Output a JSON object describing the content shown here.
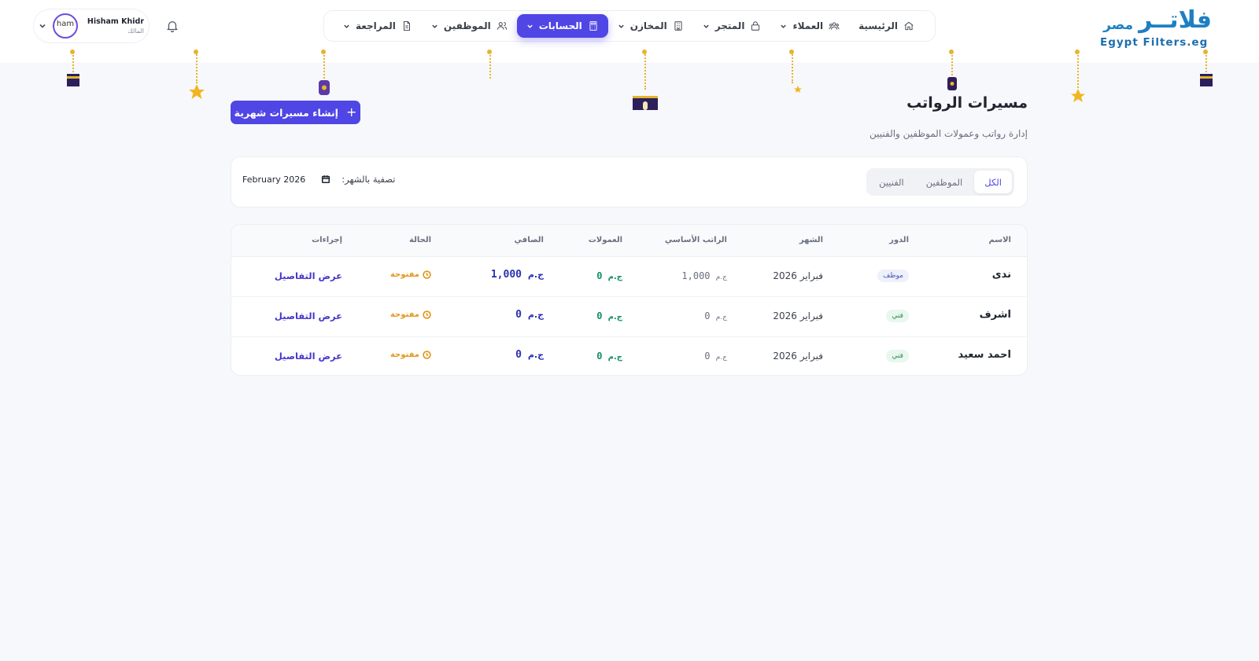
{
  "brand": {
    "name_ar": "فلاتــر",
    "name_ar_small": "مصر",
    "name_en": "Egypt Filters.eg"
  },
  "nav": [
    {
      "label": "الرئيسية",
      "icon": "home-icon",
      "has_menu": false,
      "active": false
    },
    {
      "label": "العملاء",
      "icon": "users-group-icon",
      "has_menu": true,
      "active": false
    },
    {
      "label": "المتجر",
      "icon": "lock-bag-icon",
      "has_menu": true,
      "active": false
    },
    {
      "label": "المخازن",
      "icon": "building-icon",
      "has_menu": true,
      "active": false
    },
    {
      "label": "الحسابات",
      "icon": "calculator-icon",
      "has_menu": true,
      "active": true
    },
    {
      "label": "الموظفين",
      "icon": "staff-icon",
      "has_menu": true,
      "active": false
    },
    {
      "label": "المراجعة",
      "icon": "file-icon",
      "has_menu": true,
      "active": false
    }
  ],
  "user": {
    "name": "Hisham Khidr",
    "role": "المالك",
    "avatar_alt": "ham"
  },
  "page": {
    "title": "مسيرات الرواتب",
    "subtitle": "إدارة رواتب وعمولات الموظفين والفنيين",
    "create_button": "إنشاء مسيرات شهرية"
  },
  "filters": {
    "tabs": [
      "الكل",
      "الموظفين",
      "الفنيين"
    ],
    "active_tab": "الكل",
    "month_label": "تصفية بالشهر:",
    "month_value": "February 2026"
  },
  "table": {
    "headers": {
      "name": "الاسم",
      "role": "الدور",
      "month": "الشهر",
      "base": "الراتب الأساسي",
      "commission": "العمولات",
      "net": "الصافي",
      "status": "الحالة",
      "actions": "إجراءات"
    },
    "rows": [
      {
        "name": "ندى",
        "role": "موظف",
        "role_type": "emp",
        "month": "فبراير 2026",
        "base": "1,000",
        "base_cur": "ج.م",
        "commission": "0",
        "commission_cur": "ج.م",
        "net": "1,000",
        "net_cur": "ج.م",
        "status": "مفتوحة",
        "action": "عرض التفاصيل"
      },
      {
        "name": "اشرف",
        "role": "فني",
        "role_type": "tech",
        "month": "فبراير 2026",
        "base": "0",
        "base_cur": "ج.م",
        "commission": "0",
        "commission_cur": "ج.م",
        "net": "0",
        "net_cur": "ج.م",
        "status": "مفتوحة",
        "action": "عرض التفاصيل"
      },
      {
        "name": "احمد سعيد",
        "role": "فني",
        "role_type": "tech",
        "month": "فبراير 2026",
        "base": "0",
        "base_cur": "ج.م",
        "commission": "0",
        "commission_cur": "ج.م",
        "net": "0",
        "net_cur": "ج.م",
        "status": "مفتوحة",
        "action": "عرض التفاصيل"
      }
    ]
  },
  "colors": {
    "accent": "#4f46e5",
    "brand": "#1d7fc4",
    "decoration": "#e4b52b",
    "open_status": "#e0971c",
    "commission": "#129160"
  }
}
